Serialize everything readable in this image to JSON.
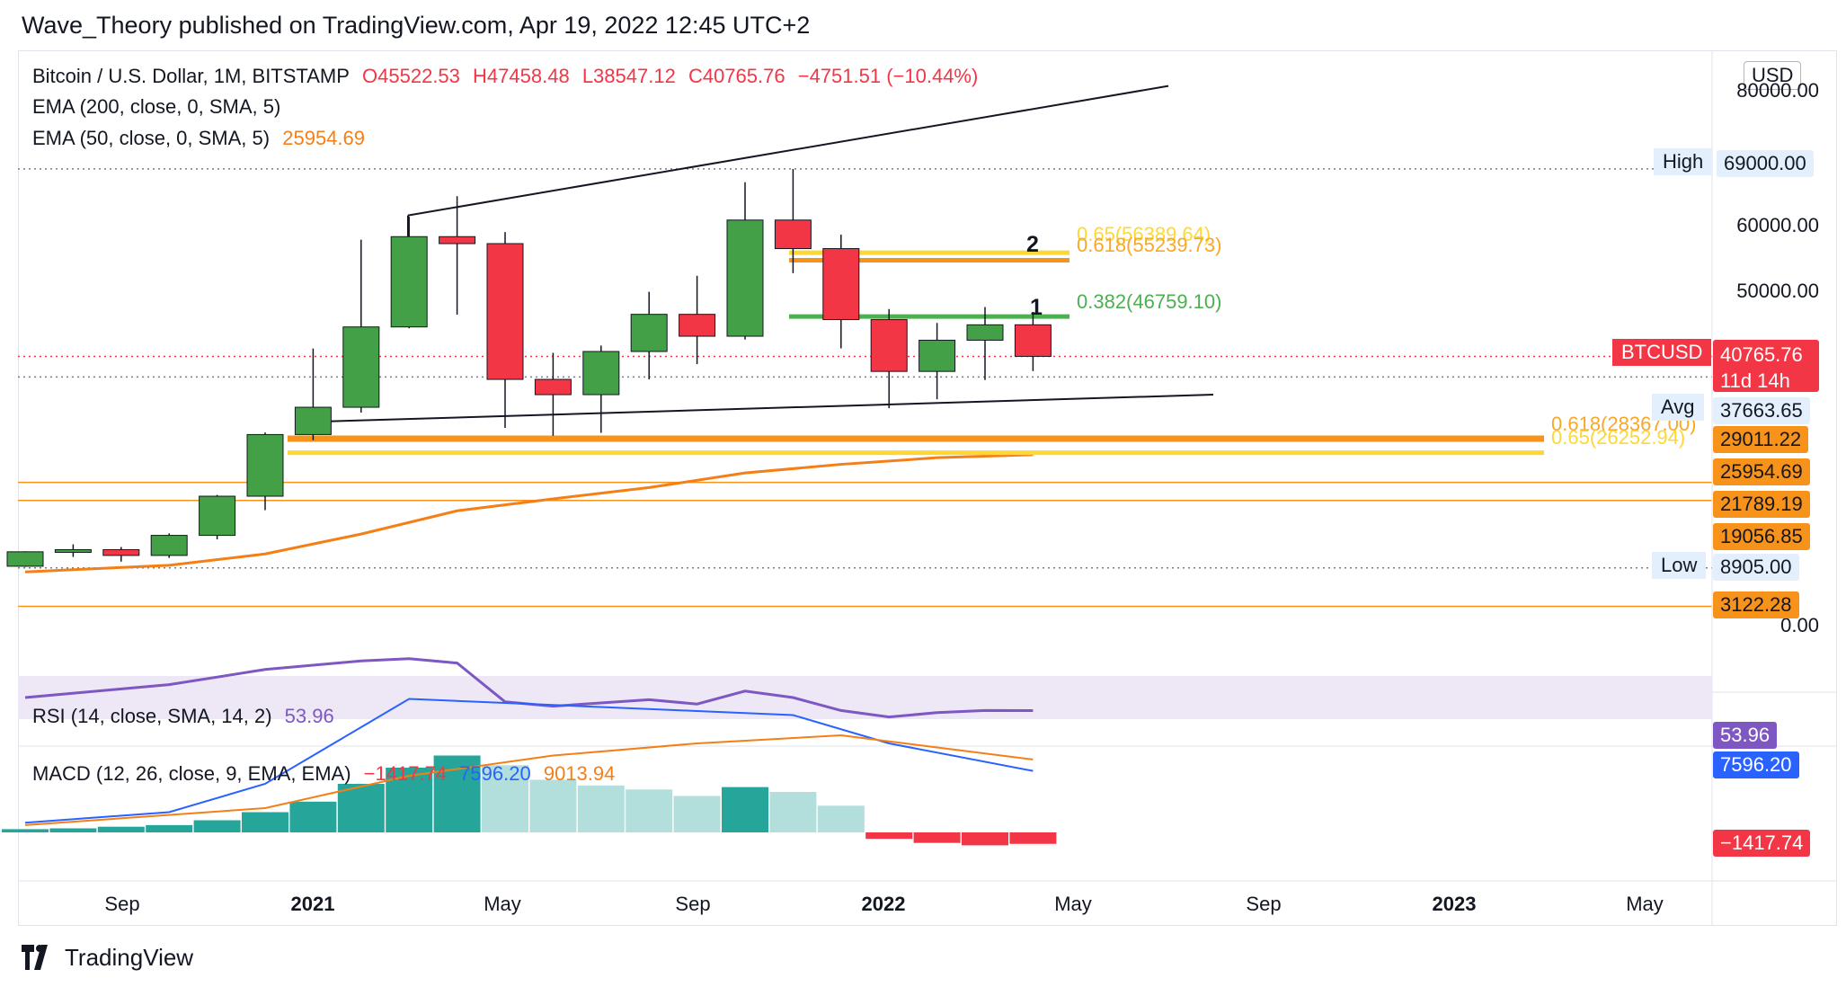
{
  "header": {
    "published": "Wave_Theory published on TradingView.com, Apr 19, 2022 12:45 UTC+2"
  },
  "legend": {
    "symbol": "Bitcoin / U.S. Dollar, 1M, BITSTAMP",
    "open": "O45522.53",
    "high": "H47458.48",
    "low": "L38547.12",
    "close": "C40765.76",
    "change": "−4751.51 (−10.44%)",
    "ema200": "EMA (200, close, 0, SMA, 5)",
    "ema50": "EMA (50, close, 0, SMA, 5)",
    "ema50_value": "25954.69",
    "rsi": "RSI (14, close, SMA, 14, 2)",
    "rsi_value": "53.96",
    "macd": "MACD (12, 26, close, 9, EMA, EMA)",
    "macd_hist": "−1417.74",
    "macd_line": "7596.20",
    "macd_signal": "9013.94"
  },
  "price_axis": {
    "currency": "USD",
    "ticks": [
      "80000.00",
      "69000.00",
      "60000.00",
      "50000.00",
      "0.00"
    ],
    "high_label": "High",
    "high_value": "69000.00",
    "symbol_label": "BTCUSD",
    "last_price": "40765.76",
    "countdown": "11d 14h",
    "avg_label": "Avg",
    "avg_value": "37663.65",
    "level_29011": "29011.22",
    "level_25954": "25954.69",
    "level_21789": "21789.19",
    "level_19056": "19056.85",
    "low_label": "Low",
    "low_value": "8905.00",
    "level_3122": "3122.28",
    "rsi_value": "53.96",
    "macd_line": "7596.20",
    "macd_hist": "−1417.74"
  },
  "fib_labels": {
    "f1": "0.65(56389.64)",
    "f2": "0.618(55239.73)",
    "f3": "0.382(46759.10)",
    "f4": "0.618(28367.00)",
    "f5": "0.65(26252.94)"
  },
  "wave_labels": {
    "w1": "1",
    "w2": "2"
  },
  "time_axis": [
    "Sep",
    "2021",
    "May",
    "Sep",
    "2022",
    "May",
    "Sep",
    "2023",
    "May"
  ],
  "footer": {
    "brand": "TradingView"
  },
  "colors": {
    "up": "#43a047",
    "down": "#f23645",
    "ema": "#f57f17",
    "rsi": "#7e57c2",
    "macd": "#2962ff",
    "signal": "#f57f17",
    "fib_yellow": "#fdd835",
    "fib_green": "#4caf50"
  },
  "chart_data": {
    "type": "candlestick",
    "interval": "1M",
    "candles": [
      {
        "t": "2020-07",
        "o": 9150,
        "h": 11400,
        "l": 9050,
        "c": 11330
      },
      {
        "t": "2020-08",
        "o": 11330,
        "h": 12450,
        "l": 10550,
        "c": 11650
      },
      {
        "t": "2020-09",
        "o": 11650,
        "h": 12050,
        "l": 9850,
        "c": 10780
      },
      {
        "t": "2020-10",
        "o": 10780,
        "h": 14100,
        "l": 10400,
        "c": 13800
      },
      {
        "t": "2020-11",
        "o": 13800,
        "h": 19900,
        "l": 13200,
        "c": 19700
      },
      {
        "t": "2020-12",
        "o": 19700,
        "h": 29300,
        "l": 17600,
        "c": 28990
      },
      {
        "t": "2021-01",
        "o": 28990,
        "h": 41950,
        "l": 28150,
        "c": 33100
      },
      {
        "t": "2021-02",
        "o": 33100,
        "h": 58350,
        "l": 32300,
        "c": 45200
      },
      {
        "t": "2021-03",
        "o": 45200,
        "h": 61800,
        "l": 45000,
        "c": 58800
      },
      {
        "t": "2021-04",
        "o": 58800,
        "h": 64900,
        "l": 47050,
        "c": 57750
      },
      {
        "t": "2021-05",
        "o": 57750,
        "h": 59500,
        "l": 30000,
        "c": 37300
      },
      {
        "t": "2021-06",
        "o": 37300,
        "h": 41300,
        "l": 28800,
        "c": 35000
      },
      {
        "t": "2021-07",
        "o": 35000,
        "h": 42400,
        "l": 29250,
        "c": 41500
      },
      {
        "t": "2021-08",
        "o": 41500,
        "h": 50500,
        "l": 37300,
        "c": 47100
      },
      {
        "t": "2021-09",
        "o": 47100,
        "h": 52900,
        "l": 39600,
        "c": 43800
      },
      {
        "t": "2021-10",
        "o": 43800,
        "h": 67000,
        "l": 43300,
        "c": 61300
      },
      {
        "t": "2021-11",
        "o": 61300,
        "h": 69000,
        "l": 53300,
        "c": 57000
      },
      {
        "t": "2021-12",
        "o": 57000,
        "h": 59100,
        "l": 41970,
        "c": 46300
      },
      {
        "t": "2022-01",
        "o": 46300,
        "h": 47900,
        "l": 32950,
        "c": 38500
      },
      {
        "t": "2022-02",
        "o": 38500,
        "h": 45800,
        "l": 34300,
        "c": 43200
      },
      {
        "t": "2022-03",
        "o": 43200,
        "h": 48200,
        "l": 37200,
        "c": 45520
      },
      {
        "t": "2022-04",
        "o": 45522.53,
        "h": 47458.48,
        "l": 38547.12,
        "c": 40765.76
      }
    ],
    "ema50": [
      {
        "t": "2020-07",
        "v": 8300
      },
      {
        "t": "2020-10",
        "v": 9300
      },
      {
        "t": "2020-12",
        "v": 11000
      },
      {
        "t": "2021-02",
        "v": 14000
      },
      {
        "t": "2021-04",
        "v": 17500
      },
      {
        "t": "2021-06",
        "v": 19300
      },
      {
        "t": "2021-08",
        "v": 21000
      },
      {
        "t": "2021-10",
        "v": 23200
      },
      {
        "t": "2021-12",
        "v": 24500
      },
      {
        "t": "2022-02",
        "v": 25500
      },
      {
        "t": "2022-04",
        "v": 25954.69
      }
    ],
    "horizontal_levels": [
      69000,
      40765.76,
      37663.65,
      29011.22,
      25954.69,
      21789.19,
      19056.85,
      8905,
      3122.28
    ],
    "fib_levels": [
      {
        "label": "0.65",
        "value": 56389.64
      },
      {
        "label": "0.618",
        "value": 55239.73
      },
      {
        "label": "0.382",
        "value": 46759.1
      },
      {
        "label": "0.618",
        "value": 28367.0
      },
      {
        "label": "0.65",
        "value": 26252.94
      }
    ],
    "rsi": [
      {
        "t": "2020-07",
        "v": 60
      },
      {
        "t": "2020-10",
        "v": 66
      },
      {
        "t": "2020-12",
        "v": 73
      },
      {
        "t": "2021-02",
        "v": 77
      },
      {
        "t": "2021-03",
        "v": 78
      },
      {
        "t": "2021-04",
        "v": 76
      },
      {
        "t": "2021-05",
        "v": 58
      },
      {
        "t": "2021-06",
        "v": 56
      },
      {
        "t": "2021-08",
        "v": 59
      },
      {
        "t": "2021-09",
        "v": 57
      },
      {
        "t": "2021-10",
        "v": 63
      },
      {
        "t": "2021-11",
        "v": 60
      },
      {
        "t": "2021-12",
        "v": 54
      },
      {
        "t": "2022-01",
        "v": 51
      },
      {
        "t": "2022-02",
        "v": 53
      },
      {
        "t": "2022-03",
        "v": 54
      },
      {
        "t": "2022-04",
        "v": 53.96
      }
    ],
    "macd_hist": [
      400,
      500,
      700,
      900,
      1500,
      2500,
      3800,
      6000,
      8000,
      9500,
      8300,
      6500,
      5800,
      5300,
      4500,
      5600,
      5000,
      3300,
      -800,
      -1300,
      -1600,
      -1417.74
    ],
    "macd_line": [
      {
        "t": "2020-07",
        "v": 1200
      },
      {
        "t": "2020-10",
        "v": 2500
      },
      {
        "t": "2020-12",
        "v": 6000
      },
      {
        "t": "2021-02",
        "v": 13000
      },
      {
        "t": "2021-03",
        "v": 16500
      },
      {
        "t": "2021-05",
        "v": 16000
      },
      {
        "t": "2021-09",
        "v": 15000
      },
      {
        "t": "2021-11",
        "v": 14500
      },
      {
        "t": "2022-01",
        "v": 11000
      },
      {
        "t": "2022-04",
        "v": 7596.2
      }
    ],
    "macd_signal": [
      {
        "t": "2020-07",
        "v": 900
      },
      {
        "t": "2020-12",
        "v": 3000
      },
      {
        "t": "2021-03",
        "v": 7000
      },
      {
        "t": "2021-06",
        "v": 9500
      },
      {
        "t": "2021-09",
        "v": 11000
      },
      {
        "t": "2021-12",
        "v": 12000
      },
      {
        "t": "2022-02",
        "v": 10500
      },
      {
        "t": "2022-04",
        "v": 9013.94
      }
    ]
  }
}
